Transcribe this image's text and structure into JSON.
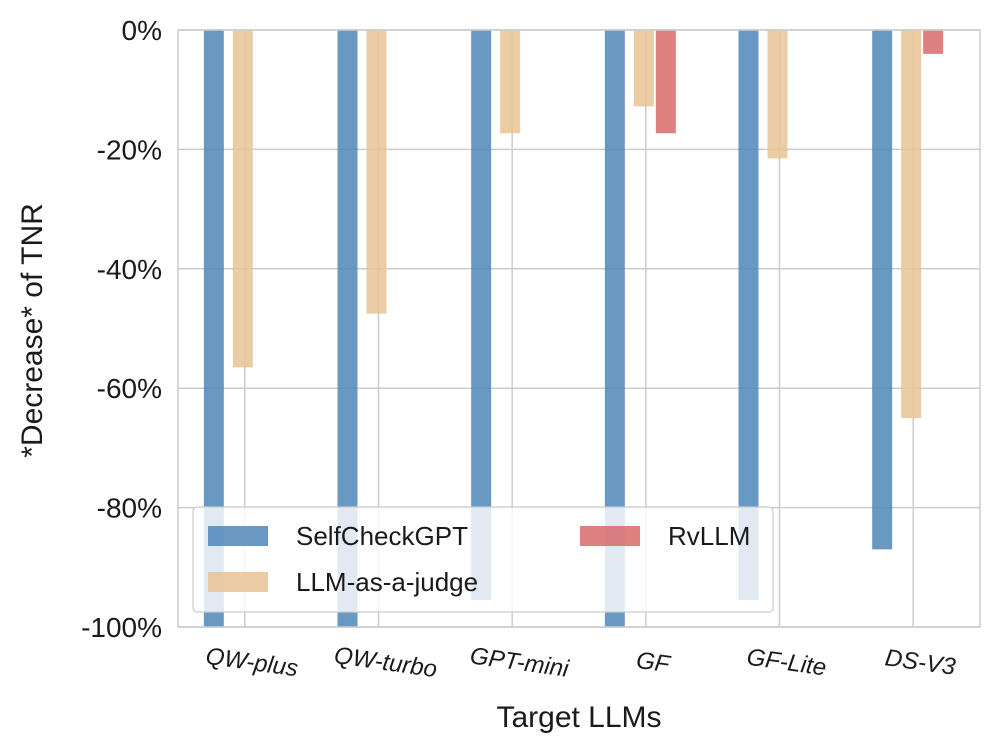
{
  "chart_data": {
    "type": "bar",
    "title": "",
    "xlabel": "Target LLMs",
    "ylabel": "*Decrease* of TNR",
    "ylim": [
      -100,
      0
    ],
    "yticks": [
      0,
      -20,
      -40,
      -60,
      -80,
      -100
    ],
    "ytick_labels": [
      "0%",
      "-20%",
      "-40%",
      "-60%",
      "-80%",
      "-100%"
    ],
    "categories": [
      "QW-plus",
      "QW-turbo",
      "GPT-mini",
      "GF",
      "GF-Lite",
      "DS-V3"
    ],
    "series": [
      {
        "name": "SelfCheckGPT",
        "color": "#4f86b8",
        "values": [
          -100,
          -100,
          -95.5,
          -100,
          -95.5,
          -87
        ]
      },
      {
        "name": "LLM-as-a-judge",
        "color": "#e8c394",
        "values": [
          -56.5,
          -47.5,
          -17.3,
          -12.8,
          -21.5,
          -65
        ]
      },
      {
        "name": "RvLLM",
        "color": "#d66a6a",
        "values": [
          0,
          0,
          0,
          -17.3,
          0,
          -4
        ]
      }
    ],
    "legend": {
      "position": "lower-left",
      "columns": 2
    },
    "grid": true
  }
}
